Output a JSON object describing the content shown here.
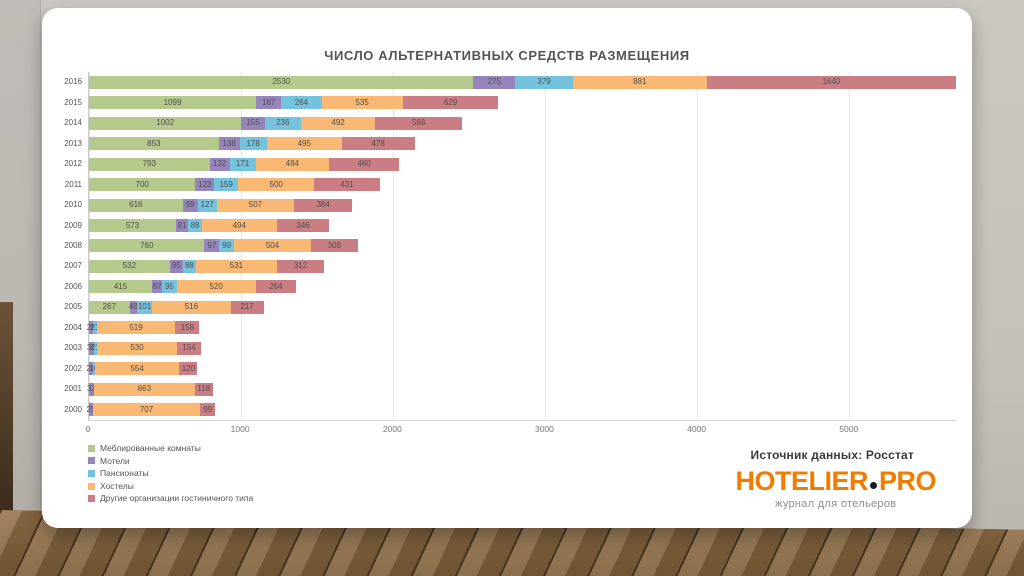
{
  "slide": {
    "title": "ЧИСЛО АЛЬТЕРНАТИВНЫХ СРЕДСТВ РАЗМЕЩЕНИЯ",
    "source_note": "Источник данных: Росстат",
    "logo": {
      "name_main": "HOTELIER",
      "name_suffix": "PRO",
      "tagline": "журнал для отельеров",
      "accent_color": "#f07c00"
    }
  },
  "chart_data": {
    "type": "bar",
    "orientation": "horizontal",
    "stacked": true,
    "gridlines": true,
    "legend_position": "bottom-left",
    "xlim": [
      0,
      5705
    ],
    "x_ticks": [
      0,
      1000,
      2000,
      3000,
      4000,
      5000
    ],
    "categories": [
      "2016",
      "2015",
      "2014",
      "2013",
      "2012",
      "2011",
      "2010",
      "2009",
      "2008",
      "2007",
      "2006",
      "2005",
      "2004",
      "2003",
      "2002",
      "2001",
      "2000"
    ],
    "series": [
      {
        "name": "Меблированные комнаты",
        "color": "#b5c98c",
        "values": [
          2530,
          1099,
          1002,
          853,
          793,
          700,
          616,
          573,
          760,
          532,
          415,
          267,
          0,
          0,
          0,
          0,
          0
        ]
      },
      {
        "name": "Мотели",
        "color": "#9684bc",
        "values": [
          275,
          167,
          155,
          138,
          132,
          123,
          99,
          81,
          97,
          85,
          67,
          48,
          29,
          30,
          24,
          33,
          25
        ]
      },
      {
        "name": "Пансионаты",
        "color": "#74c2de",
        "values": [
          379,
          264,
          236,
          178,
          171,
          159,
          127,
          88,
          99,
          88,
          95,
          101,
          21,
          21,
          16,
          0,
          0
        ]
      },
      {
        "name": "Хостелы",
        "color": "#f9b873",
        "values": [
          881,
          535,
          492,
          495,
          484,
          500,
          507,
          494,
          504,
          531,
          520,
          516,
          519,
          530,
          554,
          663,
          707
        ]
      },
      {
        "name": "Другие организации гостиничного типа",
        "color": "#ca7e83",
        "values": [
          1640,
          629,
          568,
          478,
          460,
          431,
          384,
          346,
          308,
          312,
          264,
          217,
          158,
          154,
          120,
          118,
          99
        ]
      }
    ]
  }
}
